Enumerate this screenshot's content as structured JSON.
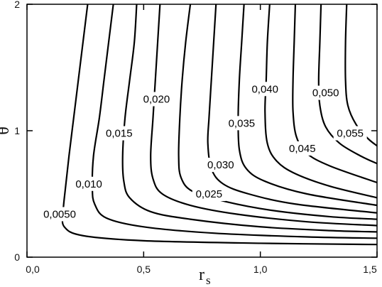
{
  "chart_data": {
    "type": "contour",
    "xlabel_main": "r",
    "xlabel_sub": "s",
    "ylabel": "θ",
    "xlim": [
      0.0,
      1.5
    ],
    "ylim": [
      0,
      2
    ],
    "grid": false,
    "x_ticks": [
      {
        "value": 0.0,
        "label": "0,0"
      },
      {
        "value": 0.5,
        "label": "0,5"
      },
      {
        "value": 1.0,
        "label": "1,0"
      },
      {
        "value": 1.5,
        "label": "1,5"
      }
    ],
    "y_ticks": [
      {
        "value": 0,
        "label": "0"
      },
      {
        "value": 1,
        "label": "1"
      },
      {
        "value": 2,
        "label": "2"
      }
    ],
    "contours": [
      {
        "level": 0.005,
        "label": "0,0050",
        "points": [
          [
            0.26,
            2.0
          ],
          [
            0.24,
            1.7
          ],
          [
            0.22,
            1.4
          ],
          [
            0.2,
            1.1
          ],
          [
            0.18,
            0.8
          ],
          [
            0.165,
            0.55
          ],
          [
            0.155,
            0.36
          ],
          [
            0.16,
            0.24
          ],
          [
            0.24,
            0.17
          ],
          [
            0.5,
            0.13
          ],
          [
            1.0,
            0.11
          ],
          [
            1.5,
            0.1
          ]
        ],
        "label_at": [
          0.14,
          0.34
        ]
      },
      {
        "level": 0.01,
        "label": "0,010",
        "points": [
          [
            0.37,
            2.0
          ],
          [
            0.35,
            1.7
          ],
          [
            0.33,
            1.4
          ],
          [
            0.31,
            1.1
          ],
          [
            0.285,
            0.8
          ],
          [
            0.28,
            0.55
          ],
          [
            0.29,
            0.42
          ],
          [
            0.34,
            0.31
          ],
          [
            0.5,
            0.24
          ],
          [
            0.8,
            0.19
          ],
          [
            1.2,
            0.16
          ],
          [
            1.5,
            0.15
          ]
        ],
        "label_at": [
          0.265,
          0.58
        ]
      },
      {
        "level": 0.015,
        "label": "0,015",
        "points": [
          [
            0.47,
            2.0
          ],
          [
            0.46,
            1.7
          ],
          [
            0.44,
            1.4
          ],
          [
            0.42,
            1.1
          ],
          [
            0.41,
            0.8
          ],
          [
            0.415,
            0.6
          ],
          [
            0.44,
            0.47
          ],
          [
            0.53,
            0.36
          ],
          [
            0.7,
            0.3
          ],
          [
            1.0,
            0.24
          ],
          [
            1.3,
            0.21
          ],
          [
            1.5,
            0.2
          ]
        ],
        "label_at": [
          0.395,
          0.98
        ]
      },
      {
        "level": 0.02,
        "label": "0,020",
        "points": [
          [
            0.57,
            2.0
          ],
          [
            0.56,
            1.7
          ],
          [
            0.55,
            1.4
          ],
          [
            0.54,
            1.1
          ],
          [
            0.53,
            0.8
          ],
          [
            0.54,
            0.62
          ],
          [
            0.58,
            0.5
          ],
          [
            0.7,
            0.41
          ],
          [
            0.9,
            0.34
          ],
          [
            1.2,
            0.28
          ],
          [
            1.5,
            0.25
          ]
        ],
        "label_at": [
          0.555,
          1.25
        ]
      },
      {
        "level": 0.025,
        "label": "0,025",
        "points": [
          [
            0.7,
            2.0
          ],
          [
            0.68,
            1.7
          ],
          [
            0.665,
            1.4
          ],
          [
            0.655,
            1.1
          ],
          [
            0.65,
            0.8
          ],
          [
            0.66,
            0.63
          ],
          [
            0.71,
            0.52
          ],
          [
            0.85,
            0.44
          ],
          [
            1.05,
            0.37
          ],
          [
            1.3,
            0.32
          ],
          [
            1.5,
            0.3
          ]
        ],
        "label_at": [
          0.78,
          0.5
        ]
      },
      {
        "level": 0.03,
        "label": "0,030",
        "points": [
          [
            0.81,
            2.0
          ],
          [
            0.8,
            1.7
          ],
          [
            0.79,
            1.4
          ],
          [
            0.78,
            1.1
          ],
          [
            0.775,
            0.9
          ],
          [
            0.79,
            0.7
          ],
          [
            0.84,
            0.58
          ],
          [
            0.95,
            0.5
          ],
          [
            1.15,
            0.42
          ],
          [
            1.5,
            0.35
          ]
        ],
        "label_at": [
          0.83,
          0.73
        ]
      },
      {
        "level": 0.035,
        "label": "0,035",
        "points": [
          [
            0.93,
            2.0
          ],
          [
            0.92,
            1.7
          ],
          [
            0.91,
            1.4
          ],
          [
            0.905,
            1.1
          ],
          [
            0.91,
            0.85
          ],
          [
            0.94,
            0.7
          ],
          [
            1.02,
            0.6
          ],
          [
            1.2,
            0.5
          ],
          [
            1.5,
            0.41
          ]
        ],
        "label_at": [
          0.92,
          1.06
        ]
      },
      {
        "level": 0.04,
        "label": "0,040",
        "points": [
          [
            1.04,
            2.0
          ],
          [
            1.03,
            1.7
          ],
          [
            1.025,
            1.4
          ],
          [
            1.02,
            1.15
          ],
          [
            1.03,
            0.9
          ],
          [
            1.07,
            0.76
          ],
          [
            1.15,
            0.66
          ],
          [
            1.3,
            0.56
          ],
          [
            1.5,
            0.47
          ]
        ],
        "label_at": [
          1.02,
          1.33
        ]
      },
      {
        "level": 0.045,
        "label": "0,045",
        "points": [
          [
            1.15,
            2.0
          ],
          [
            1.145,
            1.7
          ],
          [
            1.14,
            1.4
          ],
          [
            1.14,
            1.15
          ],
          [
            1.155,
            0.95
          ],
          [
            1.2,
            0.82
          ],
          [
            1.3,
            0.72
          ],
          [
            1.5,
            0.59
          ]
        ],
        "label_at": [
          1.18,
          0.86
        ]
      },
      {
        "level": 0.05,
        "label": "0,050",
        "points": [
          [
            1.26,
            2.0
          ],
          [
            1.255,
            1.7
          ],
          [
            1.25,
            1.4
          ],
          [
            1.255,
            1.2
          ],
          [
            1.28,
            1.03
          ],
          [
            1.34,
            0.9
          ],
          [
            1.43,
            0.8
          ],
          [
            1.5,
            0.74
          ]
        ],
        "label_at": [
          1.28,
          1.3
        ]
      },
      {
        "level": 0.055,
        "label": "0,055",
        "points": [
          [
            1.37,
            2.0
          ],
          [
            1.365,
            1.7
          ],
          [
            1.365,
            1.4
          ],
          [
            1.375,
            1.2
          ],
          [
            1.41,
            1.05
          ],
          [
            1.46,
            0.94
          ],
          [
            1.5,
            0.88
          ]
        ],
        "label_at": [
          1.385,
          0.98
        ]
      }
    ]
  }
}
